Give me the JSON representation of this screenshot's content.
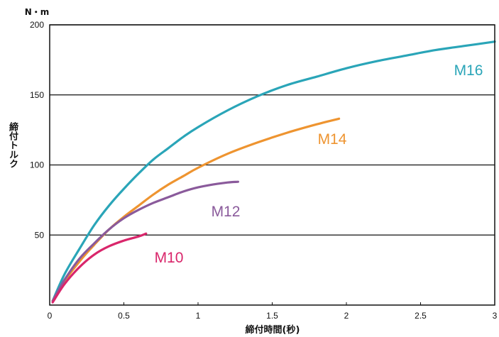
{
  "chart_data": {
    "type": "line",
    "title": "",
    "xlabel": "締付時間(秒)",
    "ylabel": "締付トルク",
    "y_unit": "N・m",
    "xlim": [
      0,
      3
    ],
    "ylim": [
      0,
      200
    ],
    "x_ticks": [
      {
        "value": 0,
        "label": "0"
      },
      {
        "value": 0.5,
        "label": "0.5"
      },
      {
        "value": 1,
        "label": "1"
      },
      {
        "value": 1.5,
        "label": "1.5"
      },
      {
        "value": 2,
        "label": "2"
      },
      {
        "value": 2.5,
        "label": "2.5"
      },
      {
        "value": 3,
        "label": "3"
      }
    ],
    "y_ticks": [
      {
        "value": 50,
        "label": "50"
      },
      {
        "value": 100,
        "label": "100"
      },
      {
        "value": 150,
        "label": "150"
      },
      {
        "value": 200,
        "label": "200"
      }
    ],
    "grid": "horizontal",
    "legend": "inline labels",
    "series": [
      {
        "name": "M16",
        "color": "#2aa5b8",
        "x": [
          0.02,
          0.1,
          0.2,
          0.3,
          0.4,
          0.5,
          0.6,
          0.7,
          0.8,
          0.9,
          1.0,
          1.2,
          1.4,
          1.6,
          1.8,
          2.0,
          2.2,
          2.4,
          2.6,
          2.8,
          3.0
        ],
        "y": [
          3,
          22,
          40,
          57,
          71,
          83,
          94,
          104,
          112,
          120,
          127,
          139,
          149,
          157,
          163,
          169,
          174,
          178,
          182,
          185,
          188
        ]
      },
      {
        "name": "M14",
        "color": "#ee9430",
        "x": [
          0.02,
          0.1,
          0.2,
          0.3,
          0.4,
          0.5,
          0.6,
          0.7,
          0.8,
          0.9,
          1.0,
          1.2,
          1.4,
          1.6,
          1.8,
          1.95
        ],
        "y": [
          3,
          17,
          31,
          43,
          54,
          63,
          71,
          79,
          86,
          92,
          98,
          108,
          116,
          123,
          129,
          133
        ]
      },
      {
        "name": "M12",
        "color": "#8a5a9b",
        "x": [
          0.02,
          0.1,
          0.2,
          0.3,
          0.4,
          0.5,
          0.6,
          0.7,
          0.8,
          0.9,
          1.0,
          1.1,
          1.2,
          1.27
        ],
        "y": [
          3,
          18,
          33,
          44,
          54,
          62,
          68,
          73,
          77,
          81,
          84,
          86,
          87.5,
          88
        ]
      },
      {
        "name": "M10",
        "color": "#d9266b",
        "x": [
          0.02,
          0.1,
          0.2,
          0.3,
          0.4,
          0.5,
          0.6,
          0.65
        ],
        "y": [
          2,
          15,
          27,
          36,
          42,
          46,
          49,
          51
        ]
      }
    ]
  }
}
